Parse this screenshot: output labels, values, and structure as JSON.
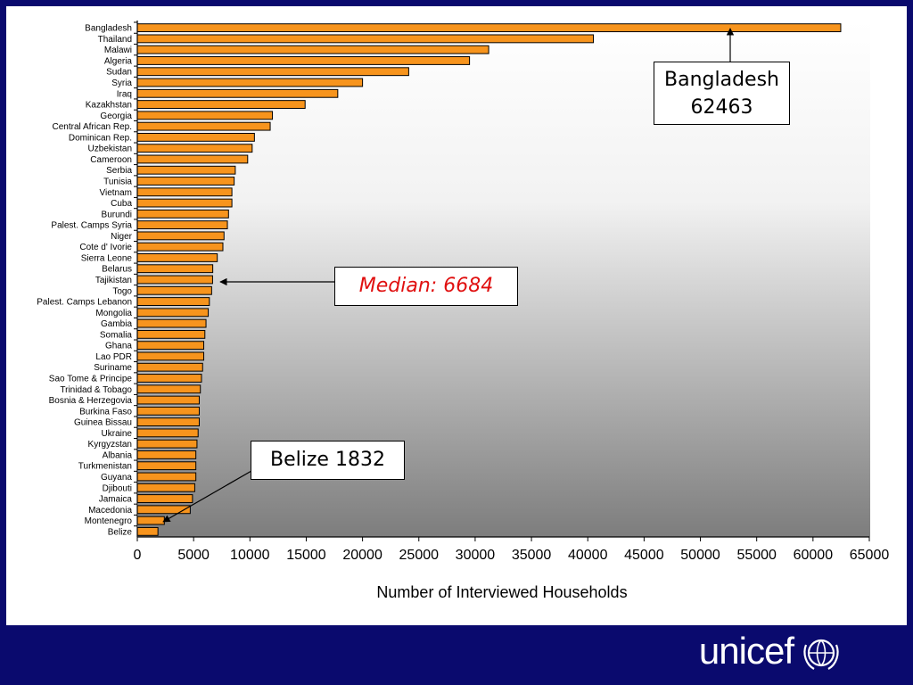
{
  "chart_data": {
    "type": "bar",
    "orientation": "horizontal",
    "xlabel": "Number of Interviewed Households",
    "xlim": [
      0,
      65000
    ],
    "xticks": [
      0,
      5000,
      10000,
      15000,
      20000,
      25000,
      30000,
      35000,
      40000,
      45000,
      50000,
      55000,
      60000,
      65000
    ],
    "bar_color": "#f7941d",
    "categories": [
      "Bangladesh",
      "Thailand",
      "Malawi",
      "Algeria",
      "Sudan",
      "Syria",
      "Iraq",
      "Kazakhstan",
      "Georgia",
      "Central African Rep.",
      "Dominican Rep.",
      "Uzbekistan",
      "Cameroon",
      "Serbia",
      "Tunisia",
      "Vietnam",
      "Cuba",
      "Burundi",
      "Palest. Camps Syria",
      "Niger",
      "Cote d' Ivorie",
      "Sierra Leone",
      "Belarus",
      "Tajikistan",
      "Togo",
      "Palest. Camps Lebanon",
      "Mongolia",
      "Gambia",
      "Somalia",
      "Ghana",
      "Lao PDR",
      "Suriname",
      "Sao Tome & Principe",
      "Trinidad & Tobago",
      "Bosnia & Herzegovia",
      "Burkina Faso",
      "Guinea Bissau",
      "Ukraine",
      "Kyrgyzstan",
      "Albania",
      "Turkmenistan",
      "Guyana",
      "Djibouti",
      "Jamaica",
      "Macedonia",
      "Montenegro",
      "Belize"
    ],
    "values": [
      62463,
      40500,
      31200,
      29500,
      24100,
      20000,
      17800,
      14900,
      12000,
      11800,
      10400,
      10200,
      9800,
      8700,
      8600,
      8400,
      8400,
      8100,
      8000,
      7700,
      7600,
      7100,
      6700,
      6684,
      6600,
      6400,
      6300,
      6100,
      6000,
      5900,
      5900,
      5800,
      5700,
      5600,
      5500,
      5500,
      5500,
      5400,
      5300,
      5200,
      5200,
      5200,
      5100,
      4900,
      4700,
      2400,
      1832
    ],
    "annotations": [
      {
        "text_line1": "Bangladesh",
        "text_line2": "62463"
      },
      {
        "text": "Median: 6684"
      },
      {
        "text": "Belize 1832"
      }
    ]
  },
  "footer": {
    "logo_text": "unicef"
  }
}
